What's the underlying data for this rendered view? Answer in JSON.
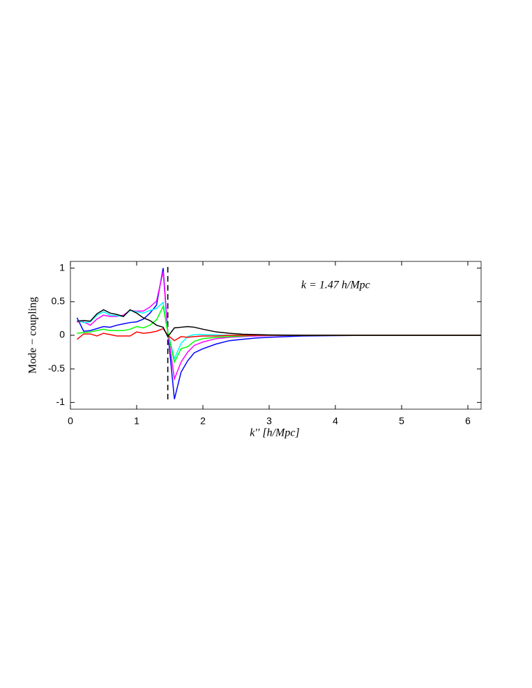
{
  "chart_data": {
    "type": "line",
    "x_label": "k′′  [h/Mpc]",
    "y_label": "Mode − coupling",
    "annotation": "k = 1.47 h/Mpc",
    "vline": 1.47,
    "xlim": [
      0,
      6.2
    ],
    "ylim": [
      -1.1,
      1.1
    ],
    "xticks": [
      0,
      1,
      2,
      3,
      4,
      5,
      6
    ],
    "yticks": [
      -1,
      -0.5,
      0,
      0.5,
      1
    ],
    "x": [
      0.1,
      0.2,
      0.3,
      0.4,
      0.5,
      0.6,
      0.7,
      0.8,
      0.9,
      1.0,
      1.1,
      1.2,
      1.3,
      1.4,
      1.47,
      1.57,
      1.67,
      1.77,
      1.87,
      2.0,
      2.2,
      2.4,
      2.6,
      2.8,
      3.0,
      3.5,
      4.0,
      4.5,
      5.0,
      5.5,
      6.0,
      6.2
    ],
    "series": [
      {
        "color": "#0000ff",
        "values": [
          0.26,
          0.06,
          0.07,
          0.1,
          0.13,
          0.12,
          0.15,
          0.17,
          0.19,
          0.2,
          0.24,
          0.33,
          0.45,
          1.0,
          0.05,
          -0.95,
          -0.55,
          -0.38,
          -0.26,
          -0.2,
          -0.13,
          -0.08,
          -0.06,
          -0.04,
          -0.03,
          -0.01,
          -0.005,
          0,
          0,
          0,
          0,
          0
        ]
      },
      {
        "color": "#ff00ff",
        "values": [
          0.2,
          0.2,
          0.15,
          0.24,
          0.3,
          0.28,
          0.28,
          0.3,
          0.37,
          0.36,
          0.36,
          0.42,
          0.51,
          0.95,
          0.05,
          -0.65,
          -0.4,
          -0.25,
          -0.15,
          -0.1,
          -0.05,
          -0.03,
          -0.02,
          -0.01,
          -0.005,
          0,
          0,
          0,
          0,
          0,
          0,
          0
        ]
      },
      {
        "color": "#00ffff",
        "values": [
          0.22,
          0.19,
          0.2,
          0.3,
          0.35,
          0.3,
          0.29,
          0.28,
          0.37,
          0.35,
          0.33,
          0.37,
          0.4,
          0.49,
          0.05,
          -0.35,
          -0.12,
          -0.02,
          0.01,
          0.01,
          0.005,
          0,
          0,
          0,
          0,
          0,
          0,
          0,
          0,
          0,
          0,
          0
        ]
      },
      {
        "color": "#00ff00",
        "values": [
          0.03,
          0.04,
          0.05,
          0.07,
          0.09,
          0.07,
          0.07,
          0.07,
          0.09,
          0.13,
          0.11,
          0.15,
          0.23,
          0.43,
          0.05,
          -0.4,
          -0.2,
          -0.17,
          -0.09,
          -0.05,
          -0.03,
          -0.02,
          -0.01,
          0,
          0,
          0,
          0,
          0,
          0,
          0,
          0,
          0
        ]
      },
      {
        "color": "#ff0000",
        "values": [
          -0.06,
          0.02,
          0.02,
          -0.01,
          0.03,
          0.01,
          -0.01,
          -0.01,
          -0.01,
          0.05,
          0.03,
          0.04,
          0.06,
          0.1,
          0.0,
          -0.08,
          -0.02,
          -0.03,
          -0.02,
          -0.01,
          -0.01,
          0,
          0,
          0,
          0,
          0,
          0,
          0,
          0,
          0,
          0,
          0
        ]
      },
      {
        "color": "#000000",
        "values": [
          0.21,
          0.22,
          0.21,
          0.32,
          0.38,
          0.33,
          0.31,
          0.28,
          0.38,
          0.33,
          0.26,
          0.22,
          0.15,
          0.12,
          -0.02,
          0.11,
          0.12,
          0.13,
          0.12,
          0.09,
          0.05,
          0.03,
          0.015,
          0.01,
          0.005,
          0,
          0,
          0,
          0,
          0,
          0,
          0
        ]
      }
    ]
  }
}
